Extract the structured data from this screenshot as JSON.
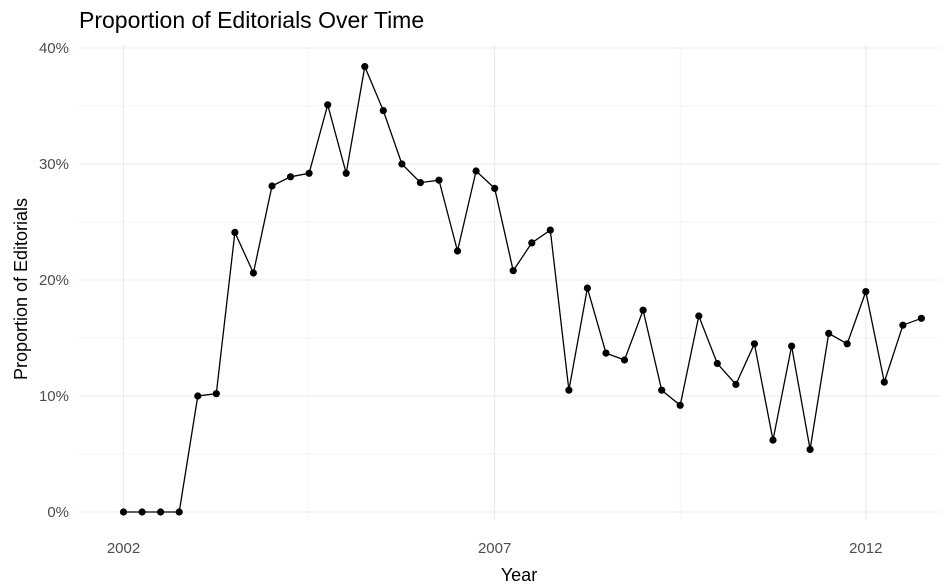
{
  "chart_data": {
    "type": "line",
    "title": "Proportion of Editorials Over Time",
    "xlabel": "Year",
    "ylabel": "Proportion of Editorials",
    "x_ticks": [
      2002,
      2007,
      2012
    ],
    "y_ticks": [
      0,
      0.1,
      0.2,
      0.3,
      0.4
    ],
    "y_tick_labels": [
      "0%",
      "10%",
      "20%",
      "30%",
      "40%"
    ],
    "xlim": [
      2001.4,
      2013.0
    ],
    "ylim": [
      0,
      0.4
    ],
    "grid": true,
    "legend": "none",
    "series": [
      {
        "color": "#000000",
        "x": [
          2002.0,
          2002.25,
          2002.5,
          2002.75,
          2003.0,
          2003.25,
          2003.5,
          2003.75,
          2004.0,
          2004.25,
          2004.5,
          2004.75,
          2005.0,
          2005.25,
          2005.5,
          2005.75,
          2006.0,
          2006.25,
          2006.5,
          2006.75,
          2007.0,
          2007.25,
          2007.5,
          2007.75,
          2008.0,
          2008.25,
          2008.5,
          2008.75,
          2009.0,
          2009.25,
          2009.5,
          2009.75,
          2010.0,
          2010.25,
          2010.5,
          2010.75,
          2011.0,
          2011.25,
          2011.5,
          2011.75,
          2012.0,
          2012.25,
          2012.5,
          2012.75
        ],
        "values": [
          0.0,
          0.0,
          0.0,
          0.0,
          0.1,
          0.102,
          0.241,
          0.206,
          0.281,
          0.289,
          0.292,
          0.351,
          0.292,
          0.384,
          0.346,
          0.3,
          0.284,
          0.286,
          0.225,
          0.294,
          0.279,
          0.208,
          0.232,
          0.243,
          0.105,
          0.193,
          0.137,
          0.131,
          0.174,
          0.105,
          0.092,
          0.169,
          0.128,
          0.11,
          0.145,
          0.062,
          0.143,
          0.054,
          0.154,
          0.145,
          0.19,
          0.112,
          0.161,
          0.167
        ]
      }
    ]
  }
}
